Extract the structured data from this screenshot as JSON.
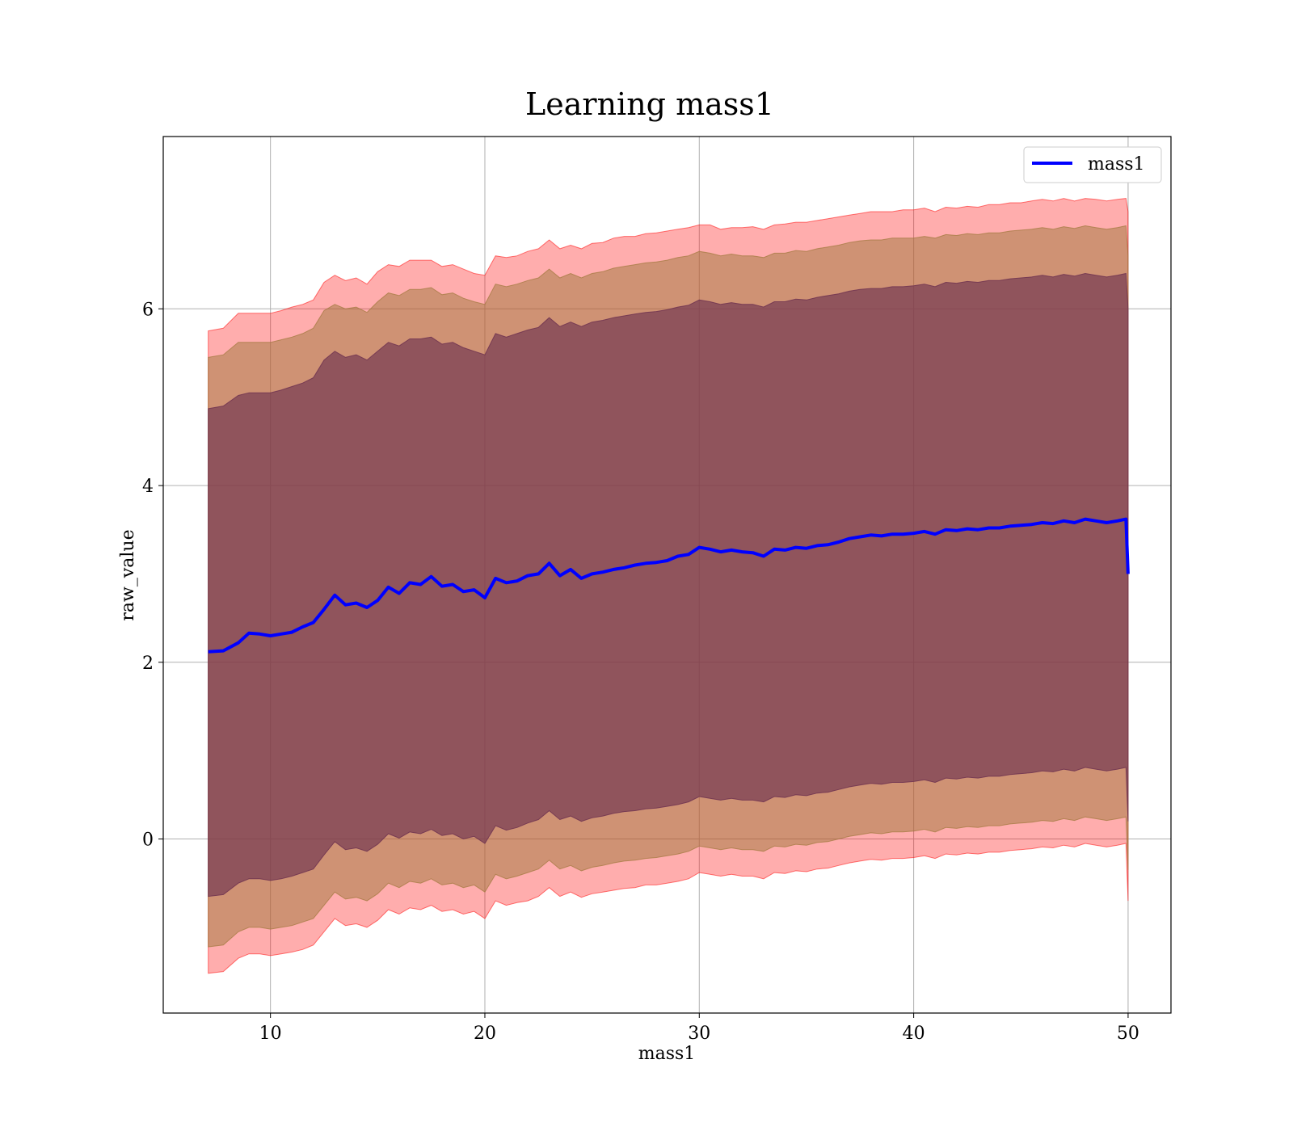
{
  "chart_data": {
    "type": "line",
    "title": "Learning mass1",
    "xlabel": "mass1",
    "ylabel": "raw_value",
    "xlim": [
      5,
      52
    ],
    "ylim": [
      -1.97,
      7.95
    ],
    "x_ticks": [
      10,
      20,
      30,
      40,
      50
    ],
    "y_ticks": [
      0,
      2,
      4,
      6
    ],
    "grid": true,
    "legend": {
      "position": "top-right",
      "entries": [
        "mass1"
      ]
    },
    "series": [
      {
        "name": "mass1",
        "color": "#0000ff",
        "x": [
          7.1,
          7.8,
          8.5,
          9.0,
          9.5,
          10.0,
          10.5,
          11.0,
          11.5,
          12.0,
          12.5,
          13.0,
          13.5,
          14.0,
          14.5,
          15.0,
          15.5,
          16.0,
          16.5,
          17.0,
          17.5,
          18.0,
          18.5,
          19.0,
          19.5,
          20.0,
          20.5,
          21.0,
          21.5,
          22.0,
          22.5,
          23.0,
          23.5,
          24.0,
          24.5,
          25.0,
          25.5,
          26.0,
          26.5,
          27.0,
          27.5,
          28.0,
          28.5,
          29.0,
          29.5,
          30.0,
          30.5,
          31.0,
          31.5,
          32.0,
          32.5,
          33.0,
          33.5,
          34.0,
          34.5,
          35.0,
          35.5,
          36.0,
          36.5,
          37.0,
          37.5,
          38.0,
          38.5,
          39.0,
          39.5,
          40.0,
          40.5,
          41.0,
          41.5,
          42.0,
          42.5,
          43.0,
          43.5,
          44.0,
          44.5,
          45.0,
          45.5,
          46.0,
          46.5,
          47.0,
          47.5,
          48.0,
          48.5,
          49.0,
          49.5,
          49.9,
          50.0
        ],
        "y": [
          2.12,
          2.13,
          2.22,
          2.33,
          2.32,
          2.3,
          2.32,
          2.34,
          2.4,
          2.45,
          2.6,
          2.76,
          2.65,
          2.67,
          2.62,
          2.7,
          2.85,
          2.78,
          2.9,
          2.88,
          2.97,
          2.86,
          2.88,
          2.8,
          2.82,
          2.73,
          2.95,
          2.9,
          2.92,
          2.98,
          3.0,
          3.12,
          2.98,
          3.05,
          2.95,
          3.0,
          3.02,
          3.05,
          3.07,
          3.1,
          3.12,
          3.13,
          3.15,
          3.2,
          3.22,
          3.3,
          3.28,
          3.25,
          3.27,
          3.25,
          3.24,
          3.2,
          3.28,
          3.27,
          3.3,
          3.29,
          3.32,
          3.33,
          3.36,
          3.4,
          3.42,
          3.44,
          3.43,
          3.45,
          3.45,
          3.46,
          3.48,
          3.45,
          3.5,
          3.49,
          3.51,
          3.5,
          3.52,
          3.52,
          3.54,
          3.55,
          3.56,
          3.58,
          3.57,
          3.6,
          3.58,
          3.62,
          3.6,
          3.58,
          3.6,
          3.62,
          3.0
        ]
      }
    ],
    "bands": [
      {
        "name": "outer",
        "color": "#ff0000",
        "opacity": 0.32,
        "upper": [
          5.75,
          5.78,
          5.95,
          5.95,
          5.95,
          5.95,
          5.98,
          6.02,
          6.05,
          6.1,
          6.3,
          6.38,
          6.32,
          6.35,
          6.28,
          6.42,
          6.5,
          6.48,
          6.55,
          6.55,
          6.55,
          6.48,
          6.5,
          6.45,
          6.4,
          6.38,
          6.6,
          6.58,
          6.6,
          6.65,
          6.68,
          6.78,
          6.68,
          6.72,
          6.68,
          6.74,
          6.75,
          6.8,
          6.82,
          6.82,
          6.85,
          6.86,
          6.88,
          6.9,
          6.92,
          6.95,
          6.95,
          6.9,
          6.92,
          6.92,
          6.93,
          6.9,
          6.95,
          6.96,
          6.98,
          6.98,
          7.0,
          7.02,
          7.04,
          7.06,
          7.08,
          7.1,
          7.1,
          7.1,
          7.12,
          7.12,
          7.14,
          7.1,
          7.15,
          7.14,
          7.16,
          7.15,
          7.18,
          7.18,
          7.2,
          7.2,
          7.22,
          7.24,
          7.22,
          7.25,
          7.22,
          7.25,
          7.24,
          7.22,
          7.24,
          7.25,
          7.1
        ],
        "lower": [
          -1.52,
          -1.5,
          -1.35,
          -1.3,
          -1.3,
          -1.32,
          -1.3,
          -1.28,
          -1.25,
          -1.2,
          -1.05,
          -0.9,
          -0.98,
          -0.96,
          -1.0,
          -0.92,
          -0.8,
          -0.85,
          -0.78,
          -0.8,
          -0.75,
          -0.82,
          -0.8,
          -0.85,
          -0.82,
          -0.9,
          -0.7,
          -0.75,
          -0.72,
          -0.7,
          -0.65,
          -0.55,
          -0.65,
          -0.6,
          -0.66,
          -0.62,
          -0.6,
          -0.58,
          -0.56,
          -0.55,
          -0.52,
          -0.52,
          -0.5,
          -0.48,
          -0.45,
          -0.38,
          -0.4,
          -0.42,
          -0.4,
          -0.42,
          -0.42,
          -0.45,
          -0.38,
          -0.39,
          -0.36,
          -0.37,
          -0.34,
          -0.33,
          -0.3,
          -0.27,
          -0.25,
          -0.23,
          -0.24,
          -0.22,
          -0.22,
          -0.21,
          -0.19,
          -0.22,
          -0.17,
          -0.18,
          -0.16,
          -0.17,
          -0.15,
          -0.15,
          -0.13,
          -0.12,
          -0.11,
          -0.09,
          -0.1,
          -0.07,
          -0.09,
          -0.05,
          -0.07,
          -0.09,
          -0.07,
          -0.05,
          -0.7
        ]
      },
      {
        "name": "middle",
        "color": "#a0783c",
        "opacity": 0.5,
        "upper": [
          5.45,
          5.48,
          5.62,
          5.62,
          5.62,
          5.62,
          5.65,
          5.68,
          5.72,
          5.78,
          5.98,
          6.05,
          6.0,
          6.02,
          5.96,
          6.08,
          6.18,
          6.15,
          6.22,
          6.22,
          6.24,
          6.16,
          6.18,
          6.12,
          6.08,
          6.05,
          6.28,
          6.25,
          6.28,
          6.32,
          6.35,
          6.45,
          6.35,
          6.4,
          6.35,
          6.4,
          6.42,
          6.46,
          6.48,
          6.5,
          6.52,
          6.53,
          6.55,
          6.58,
          6.6,
          6.65,
          6.63,
          6.6,
          6.62,
          6.6,
          6.6,
          6.58,
          6.63,
          6.63,
          6.66,
          6.65,
          6.68,
          6.7,
          6.72,
          6.75,
          6.77,
          6.78,
          6.78,
          6.8,
          6.8,
          6.8,
          6.82,
          6.8,
          6.84,
          6.83,
          6.85,
          6.84,
          6.86,
          6.86,
          6.88,
          6.89,
          6.9,
          6.92,
          6.9,
          6.93,
          6.91,
          6.94,
          6.92,
          6.9,
          6.92,
          6.94,
          6.6
        ],
        "lower": [
          -1.22,
          -1.2,
          -1.05,
          -1.0,
          -1.0,
          -1.02,
          -1.0,
          -0.98,
          -0.94,
          -0.9,
          -0.75,
          -0.6,
          -0.68,
          -0.66,
          -0.7,
          -0.62,
          -0.5,
          -0.55,
          -0.48,
          -0.5,
          -0.45,
          -0.52,
          -0.5,
          -0.55,
          -0.52,
          -0.6,
          -0.4,
          -0.45,
          -0.42,
          -0.38,
          -0.34,
          -0.24,
          -0.34,
          -0.3,
          -0.36,
          -0.32,
          -0.3,
          -0.27,
          -0.25,
          -0.24,
          -0.22,
          -0.21,
          -0.19,
          -0.17,
          -0.14,
          -0.08,
          -0.1,
          -0.12,
          -0.1,
          -0.12,
          -0.12,
          -0.14,
          -0.08,
          -0.09,
          -0.06,
          -0.07,
          -0.04,
          -0.03,
          0.0,
          0.03,
          0.05,
          0.07,
          0.06,
          0.08,
          0.08,
          0.09,
          0.11,
          0.08,
          0.13,
          0.12,
          0.14,
          0.13,
          0.15,
          0.15,
          0.17,
          0.18,
          0.19,
          0.21,
          0.2,
          0.23,
          0.21,
          0.25,
          0.23,
          0.21,
          0.23,
          0.25,
          -0.35
        ]
      },
      {
        "name": "inner",
        "color": "#6e3250",
        "opacity": 0.65,
        "upper": [
          4.87,
          4.9,
          5.02,
          5.05,
          5.05,
          5.05,
          5.08,
          5.12,
          5.16,
          5.22,
          5.42,
          5.52,
          5.45,
          5.48,
          5.42,
          5.52,
          5.62,
          5.58,
          5.66,
          5.66,
          5.68,
          5.6,
          5.62,
          5.56,
          5.52,
          5.48,
          5.72,
          5.68,
          5.72,
          5.76,
          5.79,
          5.9,
          5.8,
          5.85,
          5.8,
          5.85,
          5.87,
          5.9,
          5.92,
          5.94,
          5.96,
          5.97,
          5.99,
          6.02,
          6.04,
          6.1,
          6.08,
          6.05,
          6.07,
          6.05,
          6.05,
          6.02,
          6.08,
          6.08,
          6.11,
          6.1,
          6.13,
          6.15,
          6.17,
          6.2,
          6.22,
          6.23,
          6.23,
          6.25,
          6.25,
          6.26,
          6.28,
          6.25,
          6.3,
          6.29,
          6.31,
          6.3,
          6.32,
          6.32,
          6.34,
          6.35,
          6.36,
          6.38,
          6.36,
          6.39,
          6.37,
          6.4,
          6.38,
          6.36,
          6.38,
          6.4,
          6.0
        ],
        "lower": [
          -0.65,
          -0.63,
          -0.5,
          -0.45,
          -0.45,
          -0.47,
          -0.45,
          -0.42,
          -0.38,
          -0.34,
          -0.18,
          -0.03,
          -0.12,
          -0.1,
          -0.14,
          -0.06,
          0.06,
          0.01,
          0.08,
          0.06,
          0.11,
          0.04,
          0.06,
          0.0,
          0.03,
          -0.05,
          0.15,
          0.1,
          0.13,
          0.18,
          0.22,
          0.32,
          0.22,
          0.26,
          0.2,
          0.24,
          0.26,
          0.29,
          0.31,
          0.32,
          0.34,
          0.35,
          0.37,
          0.39,
          0.42,
          0.48,
          0.46,
          0.44,
          0.46,
          0.44,
          0.44,
          0.42,
          0.48,
          0.47,
          0.5,
          0.49,
          0.52,
          0.53,
          0.56,
          0.59,
          0.61,
          0.63,
          0.62,
          0.64,
          0.64,
          0.65,
          0.67,
          0.64,
          0.69,
          0.68,
          0.7,
          0.69,
          0.71,
          0.71,
          0.73,
          0.74,
          0.75,
          0.77,
          0.76,
          0.79,
          0.77,
          0.81,
          0.79,
          0.77,
          0.79,
          0.81,
          0.2
        ]
      }
    ]
  }
}
